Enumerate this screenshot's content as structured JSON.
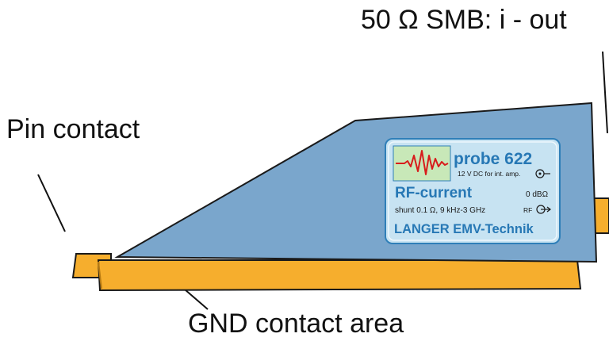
{
  "callouts": {
    "smb_output": "50 Ω SMB:  i - out",
    "pin_contact": "Pin contact",
    "gnd_area": "GND contact area"
  },
  "plate": {
    "model": "probe 622",
    "supply": "12 V DC for int. amp.",
    "type": "RF-current",
    "gain": "0 dBΩ",
    "spec": "shunt 0.1 Ω,  9 kHz-3 GHz",
    "rf_label": "RF",
    "manufacturer": "LANGER EMV-Technik"
  },
  "colors": {
    "body": "#7aa6cc",
    "body_dark": "#1a1a1a",
    "base": "#f6ae2d",
    "plate_bg": "#c7e3f2",
    "plate_border": "#2f7fb8",
    "plate_text": "#2778b5",
    "waveform": "#d81b1b",
    "icon_bg": "#c8e8b8"
  },
  "icons": {
    "supply_connector": "coax-in-icon",
    "rf_connector": "coax-out-icon",
    "waveform": "waveform-icon"
  }
}
